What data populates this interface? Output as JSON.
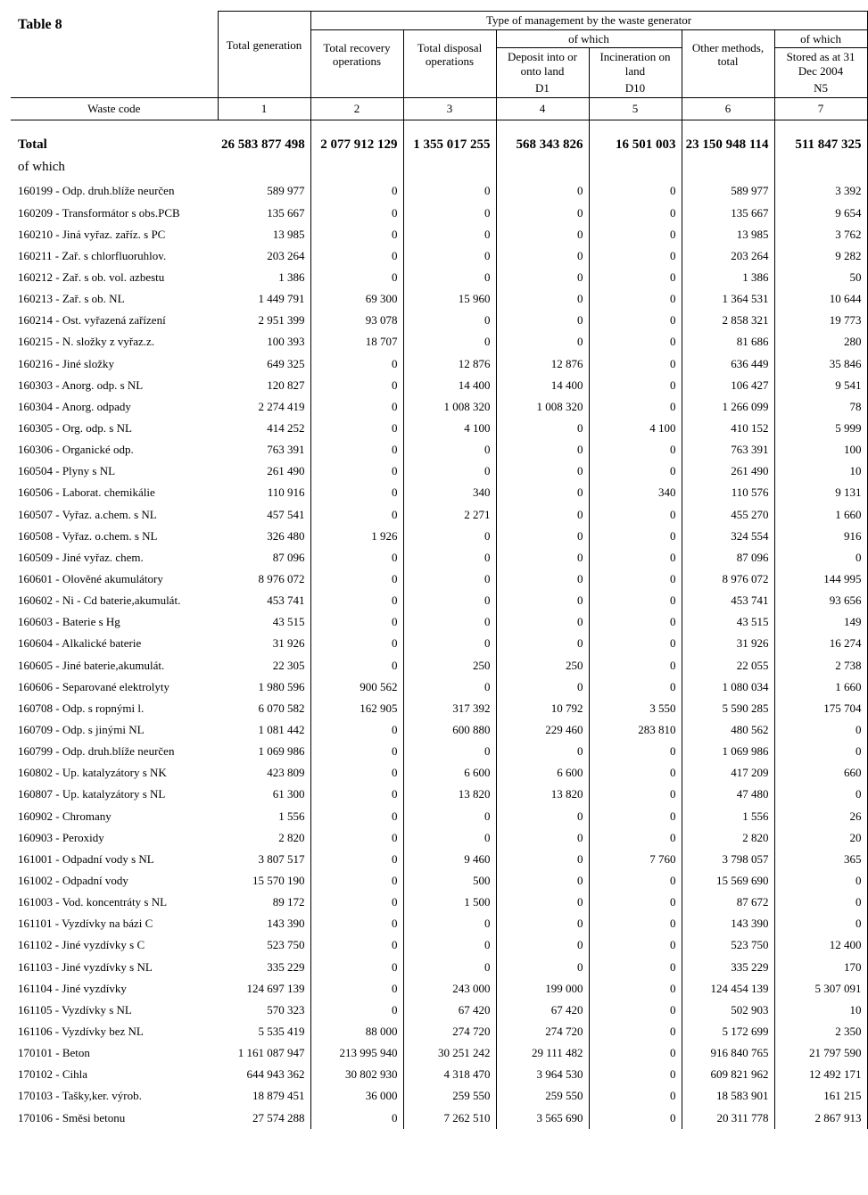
{
  "title": "Table 8",
  "headers": {
    "waste_code": "Waste code",
    "total_generation": "Total generation",
    "mgmt_header": "Type of management by the waste generator",
    "total_recovery": "Total recovery operations",
    "total_disposal": "Total disposal operations",
    "of_which": "of which",
    "deposit": "Deposit into or onto land",
    "incineration": "Incineration on land",
    "other_methods": "Other methods, total",
    "stored_as": "Stored as              at 31 Dec 2004",
    "d1": "D1",
    "d10": "D10",
    "n5": "N5",
    "col1": "1",
    "col2": "2",
    "col3": "3",
    "col4": "4",
    "col5": "5",
    "col6": "6",
    "col7": "7"
  },
  "total_label": "Total",
  "of_which_label": "of which",
  "totals": [
    "26 583 877 498",
    "2 077 912 129",
    "1 355 017 255",
    "568 343 826",
    "16 501 003",
    "23 150 948 114",
    "511 847 325"
  ],
  "rows": [
    {
      "label": "160199 - Odp. druh.blíže neurčen",
      "v": [
        "589 977",
        "0",
        "0",
        "0",
        "0",
        "589 977",
        "3 392"
      ]
    },
    {
      "label": "160209 - Transformátor s obs.PCB",
      "v": [
        "135 667",
        "0",
        "0",
        "0",
        "0",
        "135 667",
        "9 654"
      ]
    },
    {
      "label": "160210 - Jiná vyřaz. zaříz. s PC",
      "v": [
        "13 985",
        "0",
        "0",
        "0",
        "0",
        "13 985",
        "3 762"
      ]
    },
    {
      "label": "160211 - Zař. s chlorfluoruhlov.",
      "v": [
        "203 264",
        "0",
        "0",
        "0",
        "0",
        "203 264",
        "9 282"
      ]
    },
    {
      "label": "160212 - Zař. s ob. vol. azbestu",
      "v": [
        "1 386",
        "0",
        "0",
        "0",
        "0",
        "1 386",
        "50"
      ]
    },
    {
      "label": "160213 - Zař. s ob. NL",
      "v": [
        "1 449 791",
        "69 300",
        "15 960",
        "0",
        "0",
        "1 364 531",
        "10 644"
      ]
    },
    {
      "label": "160214 - Ost. vyřazená zařízení",
      "v": [
        "2 951 399",
        "93 078",
        "0",
        "0",
        "0",
        "2 858 321",
        "19 773"
      ]
    },
    {
      "label": "160215 - N. složky z vyřaz.z.",
      "v": [
        "100 393",
        "18 707",
        "0",
        "0",
        "0",
        "81 686",
        "280"
      ]
    },
    {
      "label": "160216 - Jiné složky",
      "v": [
        "649 325",
        "0",
        "12 876",
        "12 876",
        "0",
        "636 449",
        "35 846"
      ]
    },
    {
      "label": "160303 - Anorg. odp. s NL",
      "v": [
        "120 827",
        "0",
        "14 400",
        "14 400",
        "0",
        "106 427",
        "9 541"
      ]
    },
    {
      "label": "160304 - Anorg. odpady",
      "v": [
        "2 274 419",
        "0",
        "1 008 320",
        "1 008 320",
        "0",
        "1 266 099",
        "78"
      ]
    },
    {
      "label": "160305 - Org. odp. s NL",
      "v": [
        "414 252",
        "0",
        "4 100",
        "0",
        "4 100",
        "410 152",
        "5 999"
      ]
    },
    {
      "label": "160306 - Organické odp.",
      "v": [
        "763 391",
        "0",
        "0",
        "0",
        "0",
        "763 391",
        "100"
      ]
    },
    {
      "label": "160504 - Plyny s NL",
      "v": [
        "261 490",
        "0",
        "0",
        "0",
        "0",
        "261 490",
        "10"
      ]
    },
    {
      "label": "160506 - Laborat. chemikálie",
      "v": [
        "110 916",
        "0",
        "340",
        "0",
        "340",
        "110 576",
        "9 131"
      ]
    },
    {
      "label": "160507 - Vyřaz. a.chem. s NL",
      "v": [
        "457 541",
        "0",
        "2 271",
        "0",
        "0",
        "455 270",
        "1 660"
      ]
    },
    {
      "label": "160508 - Vyřaz. o.chem. s NL",
      "v": [
        "326 480",
        "1 926",
        "0",
        "0",
        "0",
        "324 554",
        "916"
      ]
    },
    {
      "label": "160509 - Jiné vyřaz. chem.",
      "v": [
        "87 096",
        "0",
        "0",
        "0",
        "0",
        "87 096",
        "0"
      ]
    },
    {
      "label": "160601 - Olověné akumulátory",
      "v": [
        "8 976 072",
        "0",
        "0",
        "0",
        "0",
        "8 976 072",
        "144 995"
      ]
    },
    {
      "label": "160602 - Ni - Cd baterie,akumulát.",
      "v": [
        "453 741",
        "0",
        "0",
        "0",
        "0",
        "453 741",
        "93 656"
      ]
    },
    {
      "label": "160603 - Baterie s Hg",
      "v": [
        "43 515",
        "0",
        "0",
        "0",
        "0",
        "43 515",
        "149"
      ]
    },
    {
      "label": "160604 - Alkalické baterie",
      "v": [
        "31 926",
        "0",
        "0",
        "0",
        "0",
        "31 926",
        "16 274"
      ]
    },
    {
      "label": "160605 - Jiné baterie,akumulát.",
      "v": [
        "22 305",
        "0",
        "250",
        "250",
        "0",
        "22 055",
        "2 738"
      ]
    },
    {
      "label": "160606 - Separované elektrolyty",
      "v": [
        "1 980 596",
        "900 562",
        "0",
        "0",
        "0",
        "1 080 034",
        "1 660"
      ]
    },
    {
      "label": "160708 - Odp. s ropnými l.",
      "v": [
        "6 070 582",
        "162 905",
        "317 392",
        "10 792",
        "3 550",
        "5 590 285",
        "175 704"
      ]
    },
    {
      "label": "160709 - Odp. s jinými NL",
      "v": [
        "1 081 442",
        "0",
        "600 880",
        "229 460",
        "283 810",
        "480 562",
        "0"
      ]
    },
    {
      "label": "160799 - Odp. druh.blíže neurčen",
      "v": [
        "1 069 986",
        "0",
        "0",
        "0",
        "0",
        "1 069 986",
        "0"
      ]
    },
    {
      "label": "160802 - Up. katalyzátory s NK",
      "v": [
        "423 809",
        "0",
        "6 600",
        "6 600",
        "0",
        "417 209",
        "660"
      ]
    },
    {
      "label": "160807 - Up. katalyzátory s NL",
      "v": [
        "61 300",
        "0",
        "13 820",
        "13 820",
        "0",
        "47 480",
        "0"
      ]
    },
    {
      "label": "160902 - Chromany",
      "v": [
        "1 556",
        "0",
        "0",
        "0",
        "0",
        "1 556",
        "26"
      ]
    },
    {
      "label": "160903 - Peroxidy",
      "v": [
        "2 820",
        "0",
        "0",
        "0",
        "0",
        "2 820",
        "20"
      ]
    },
    {
      "label": "161001 - Odpadní vody s NL",
      "v": [
        "3 807 517",
        "0",
        "9 460",
        "0",
        "7 760",
        "3 798 057",
        "365"
      ]
    },
    {
      "label": "161002 - Odpadní vody",
      "v": [
        "15 570 190",
        "0",
        "500",
        "0",
        "0",
        "15 569 690",
        "0"
      ]
    },
    {
      "label": "161003 - Vod. koncentráty s NL",
      "v": [
        "89 172",
        "0",
        "1 500",
        "0",
        "0",
        "87 672",
        "0"
      ]
    },
    {
      "label": "161101 - Vyzdívky na bázi C",
      "v": [
        "143 390",
        "0",
        "0",
        "0",
        "0",
        "143 390",
        "0"
      ]
    },
    {
      "label": "161102 - Jiné vyzdívky s C",
      "v": [
        "523 750",
        "0",
        "0",
        "0",
        "0",
        "523 750",
        "12 400"
      ]
    },
    {
      "label": "161103 - Jiné vyzdívky s NL",
      "v": [
        "335 229",
        "0",
        "0",
        "0",
        "0",
        "335 229",
        "170"
      ]
    },
    {
      "label": "161104 - Jiné vyzdívky",
      "v": [
        "124 697 139",
        "0",
        "243 000",
        "199 000",
        "0",
        "124 454 139",
        "5 307 091"
      ]
    },
    {
      "label": "161105 - Vyzdívky s NL",
      "v": [
        "570 323",
        "0",
        "67 420",
        "67 420",
        "0",
        "502 903",
        "10"
      ]
    },
    {
      "label": "161106 - Vyzdívky bez NL",
      "v": [
        "5 535 419",
        "88 000",
        "274 720",
        "274 720",
        "0",
        "5 172 699",
        "2 350"
      ]
    },
    {
      "label": "170101 - Beton",
      "v": [
        "1 161 087 947",
        "213 995 940",
        "30 251 242",
        "29 111 482",
        "0",
        "916 840 765",
        "21 797 590"
      ]
    },
    {
      "label": "170102 - Cihla",
      "v": [
        "644 943 362",
        "30 802 930",
        "4 318 470",
        "3 964 530",
        "0",
        "609 821 962",
        "12 492 171"
      ]
    },
    {
      "label": "170103 - Tašky,ker. výrob.",
      "v": [
        "18 879 451",
        "36 000",
        "259 550",
        "259 550",
        "0",
        "18 583 901",
        "161 215"
      ]
    },
    {
      "label": "170106 - Směsi betonu",
      "v": [
        "27 574 288",
        "0",
        "7 262 510",
        "3 565 690",
        "0",
        "20 311 778",
        "2 867 913"
      ]
    }
  ]
}
